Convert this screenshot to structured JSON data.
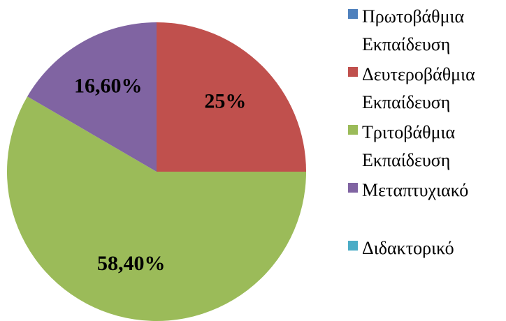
{
  "chart_data": {
    "type": "pie",
    "categories": [
      "Πρωτοβάθμια Εκπαίδευση",
      "Δευτεροβάθμια Εκπαίδευση",
      "Τριτοβάθμια Εκπαίδευση",
      "Μεταπτυχιακό",
      "Διδακτορικό"
    ],
    "values": [
      0,
      25,
      58.4,
      16.6,
      0
    ],
    "value_labels": [
      null,
      "25%",
      "58,40%",
      "16,60%",
      null
    ],
    "colors": [
      "#4f81bd",
      "#c0504d",
      "#9bbb59",
      "#8064a2",
      "#4bacc6"
    ],
    "legend": "right"
  }
}
